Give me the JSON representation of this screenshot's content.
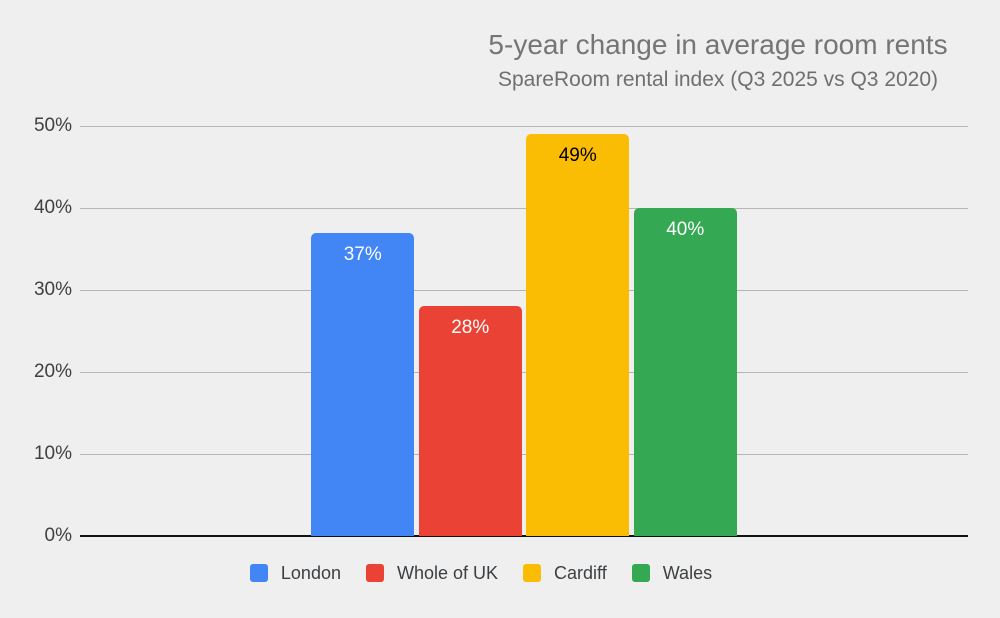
{
  "chart_data": {
    "type": "bar",
    "title": "5-year change in average room rents",
    "subtitle": "SpareRoom rental index (Q3 2025 vs Q3 2020)",
    "categories": [
      "London",
      "Whole of UK",
      "Cardiff",
      "Wales"
    ],
    "series": [
      {
        "name": "London",
        "value": 37,
        "label": "37%",
        "color": "#4285f4",
        "label_color": "#ffffff"
      },
      {
        "name": "Whole of UK",
        "value": 28,
        "label": "28%",
        "color": "#ea4335",
        "label_color": "#ffffff"
      },
      {
        "name": "Cardiff",
        "value": 49,
        "label": "49%",
        "color": "#fbbc04",
        "label_color": "#000000"
      },
      {
        "name": "Wales",
        "value": 40,
        "label": "40%",
        "color": "#34a853",
        "label_color": "#ffffff"
      }
    ],
    "y_axis": {
      "ticks": [
        "0%",
        "10%",
        "20%",
        "30%",
        "40%",
        "50%"
      ],
      "values": [
        0,
        10,
        20,
        30,
        40,
        50
      ],
      "min": 0,
      "max": 50
    },
    "grid": true,
    "legend_position": "bottom",
    "colors": {
      "background": "#efefef",
      "gridline": "#b6b6b6",
      "zero_line": "#111111",
      "title_text": "#757575",
      "tick_text": "#404040",
      "legend_text": "#3c4043"
    }
  }
}
